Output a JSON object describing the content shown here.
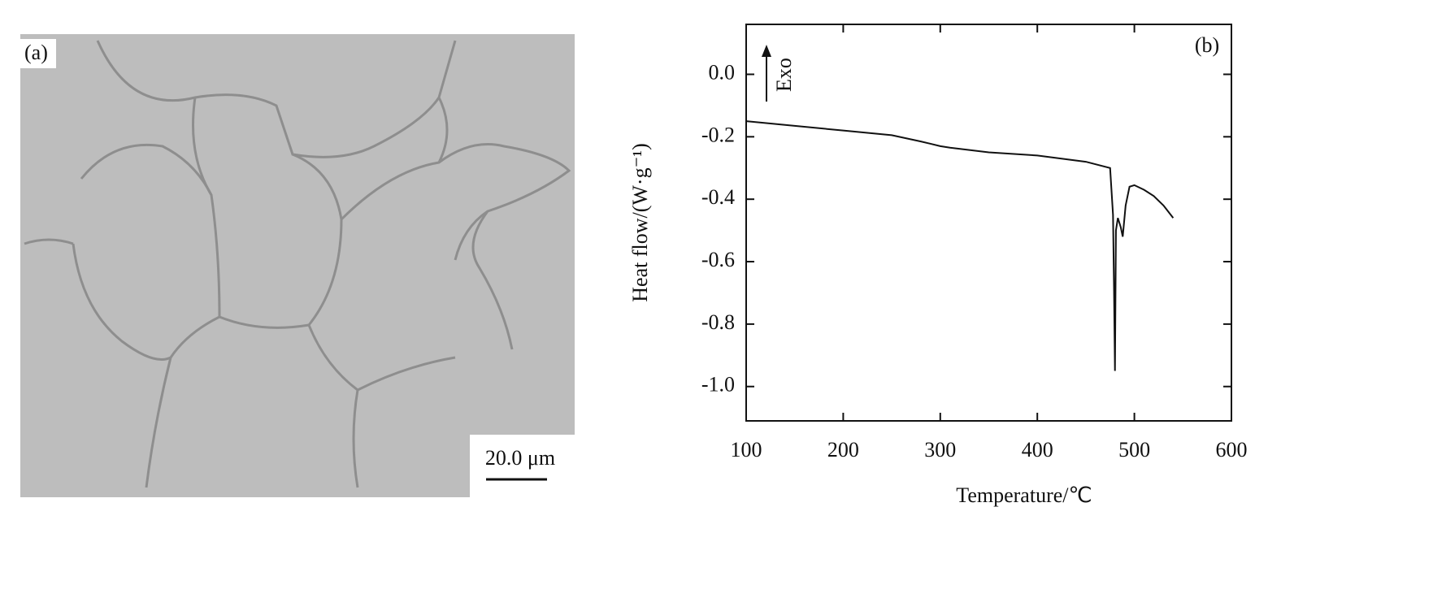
{
  "panel_a": {
    "label": "(a)",
    "scale_bar": "20.0 μm"
  },
  "chart_data": {
    "type": "line",
    "panel_label": "(b)",
    "annotation": "Exo",
    "x_label": "Temperature/℃",
    "y_label": "Heat flow/(W·g⁻¹)",
    "xlim": [
      100,
      600
    ],
    "xticks": [
      100,
      200,
      300,
      400,
      500,
      600
    ],
    "ylim": [
      -1.11,
      0.16
    ],
    "yticks": [
      {
        "value": 0,
        "label": "0.0"
      },
      -0.2,
      -0.4,
      -0.6,
      -0.8,
      {
        "value": -1,
        "label": "-1.0"
      }
    ],
    "series": [
      {
        "color": "#111111",
        "x": [
          100,
          150,
          200,
          250,
          280,
          300,
          310,
          350,
          400,
          450,
          475,
          478,
          479,
          480,
          481,
          483,
          486,
          488,
          491,
          495,
          500,
          510,
          520,
          530,
          540
        ],
        "values": [
          -0.15,
          -0.165,
          -0.18,
          -0.195,
          -0.215,
          -0.23,
          -0.235,
          -0.25,
          -0.26,
          -0.28,
          -0.3,
          -0.45,
          -0.68,
          -0.95,
          -0.5,
          -0.46,
          -0.49,
          -0.52,
          -0.42,
          -0.36,
          -0.355,
          -0.37,
          -0.39,
          -0.42,
          -0.46
        ]
      }
    ]
  }
}
